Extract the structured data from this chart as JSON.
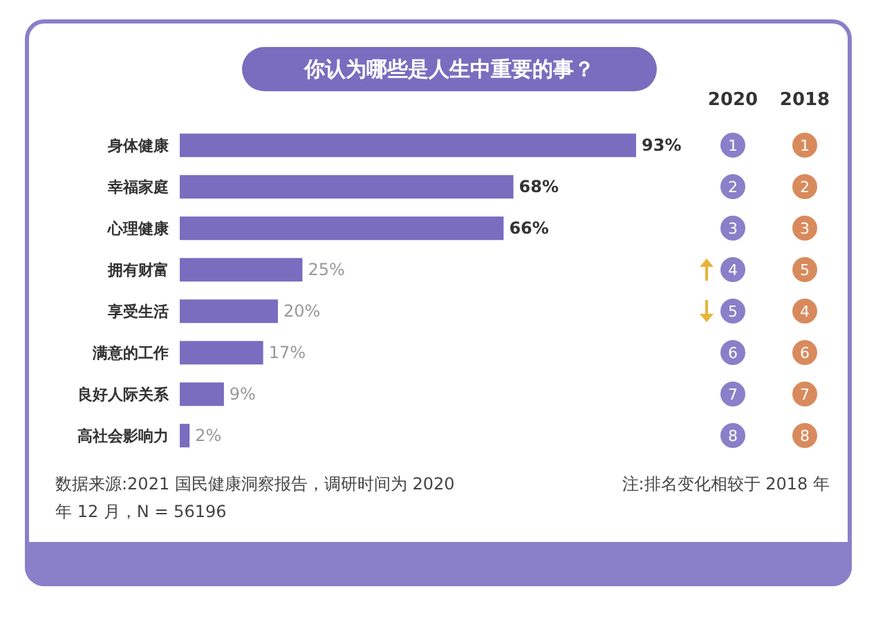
{
  "chart_data": {
    "type": "bar",
    "orientation": "horizontal",
    "title": "你认为哪些是人生中重要的事？",
    "categories": [
      "身体健康",
      "幸福家庭",
      "心理健康",
      "拥有财富",
      "享受生活",
      "满意的工作",
      "良好人际关系",
      "高社会影响力"
    ],
    "values": [
      93,
      68,
      66,
      25,
      20,
      17,
      9,
      2
    ],
    "value_labels": [
      "93%",
      "68%",
      "66%",
      "25%",
      "20%",
      "17%",
      "9%",
      "2%"
    ],
    "color": "#7a6cbf",
    "annotations": [
      "2020",
      "2018",
      "1",
      "2",
      "3",
      "4",
      "5",
      "6",
      "7",
      "8",
      "1",
      "2",
      "3",
      "5",
      "4",
      "6",
      "7",
      "8",
      "数据来源:2021 国民健康洞察报告，调研时间为 2020 年 12 月，N = 56196",
      "注:排名变化相较于 2018 年"
    ]
  }
}
